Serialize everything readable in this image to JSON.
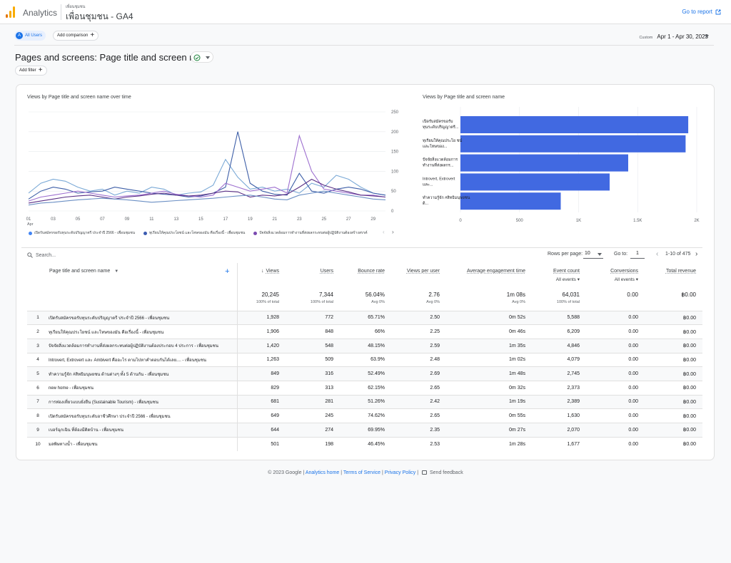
{
  "app": {
    "brand": "Analytics",
    "account_sub": "เพื่อนชุมชน",
    "account_main": "เพื่อนชุมชน - GA4",
    "go_to_report": "Go to report"
  },
  "toolbar": {
    "segment_avatar": "A",
    "segment_label": "All Users",
    "add_comparison": "Add comparison",
    "date_label": "Custom",
    "date_range": "Apr 1 - Apr 30, 2023"
  },
  "report": {
    "title": "Pages and screens: Page title and screen name",
    "add_filter": "Add filter"
  },
  "line_chart": {
    "title": "Views by Page title and screen name over time",
    "y_ticks": [
      "250",
      "200",
      "150",
      "100",
      "50",
      "0"
    ],
    "x_ticks": [
      "01",
      "03",
      "05",
      "07",
      "09",
      "11",
      "13",
      "15",
      "17",
      "19",
      "21",
      "23",
      "25",
      "27",
      "29"
    ],
    "x_month": "Apr",
    "legend": [
      {
        "name": "เปิดรับสมัครขอรับทุนระดับปริญญาตรี ประจำปี 2566 - เพื่อนชุมชน",
        "color": "#4285f4"
      },
      {
        "name": "ทุเรียนให้คุณประโยชน์ และโทษของมัน คือเรื่องนี้ - เพื่อนชุมชน",
        "color": "#3b5bb0"
      },
      {
        "name": "ปัจจัยสิ่งแวดล้อมการทำงานที่ส่งผลกระทบต่อผู้ปฏิบัติงานต้องสร้างสรรค์",
        "color": "#7a4ab0"
      }
    ],
    "colors": {
      "s1": "#7aa9d6",
      "s2": "#3e5fa8",
      "s3": "#9d6fcf",
      "s4": "#5a2f85",
      "s5": "#6b8fc4"
    },
    "series": [
      {
        "values": [
          45,
          70,
          80,
          75,
          60,
          50,
          55,
          40,
          50,
          45,
          60,
          55,
          40,
          45,
          48,
          65,
          130,
          85,
          55,
          60,
          50,
          55,
          45,
          70,
          60,
          90,
          80,
          60,
          45,
          40
        ]
      },
      {
        "values": [
          30,
          50,
          60,
          55,
          45,
          48,
          50,
          60,
          55,
          50,
          45,
          42,
          40,
          35,
          38,
          45,
          60,
          200,
          70,
          50,
          42,
          40,
          95,
          50,
          45,
          55,
          60,
          55,
          45,
          40
        ]
      },
      {
        "values": [
          25,
          35,
          40,
          45,
          50,
          45,
          40,
          35,
          38,
          40,
          45,
          50,
          42,
          38,
          35,
          40,
          70,
          60,
          50,
          55,
          60,
          45,
          190,
          100,
          55,
          50,
          45,
          40,
          40,
          35
        ]
      },
      {
        "values": [
          20,
          25,
          30,
          35,
          38,
          40,
          35,
          30,
          35,
          38,
          42,
          45,
          40,
          38,
          40,
          45,
          50,
          48,
          35,
          40,
          38,
          42,
          60,
          80,
          65,
          55,
          48,
          40,
          38,
          35
        ]
      },
      {
        "values": [
          15,
          20,
          22,
          25,
          28,
          30,
          32,
          30,
          28,
          25,
          22,
          24,
          26,
          28,
          30,
          32,
          35,
          38,
          40,
          35,
          30,
          28,
          40,
          45,
          50,
          45,
          40,
          35,
          30,
          28
        ]
      }
    ]
  },
  "bar_chart": {
    "title": "Views by Page title and screen name",
    "color": "#4169e1",
    "categories": [
      "เปิดรับสมัครขอรับ ทุนระดับปริญญาตรี...",
      "ทุเรียนให้คุณประโย ชน์ และโทษของ...",
      "ปัจจัยสิ่งแวดล้อมการ ทำงานที่ส่งผลกร...",
      "Introvert, Extrovert และ...",
      "ทำความรู้จัก #สิทธิมนุษยชน ดิ..."
    ],
    "values": [
      1928,
      1906,
      1420,
      1263,
      849
    ],
    "x_ticks": [
      "0",
      "500",
      "1K",
      "1.5K",
      "2K"
    ],
    "xlim": [
      0,
      2000
    ]
  },
  "table_controls": {
    "search_placeholder": "Search...",
    "rows_per_page_label": "Rows per page:",
    "rows_per_page": "10",
    "go_to_label": "Go to:",
    "go_to": "1",
    "range": "1-10 of 475"
  },
  "table": {
    "dim_header": "Page title and screen name",
    "headers": [
      "Views",
      "Users",
      "Bounce rate",
      "Views per user",
      "Average engagement time",
      "Event count",
      "Conversions",
      "Total revenue"
    ],
    "subheaders": [
      "",
      "",
      "",
      "",
      "",
      "All events",
      "All events",
      ""
    ],
    "totals": [
      "20,245",
      "7,344",
      "56.04%",
      "2.76",
      "1m 08s",
      "64,031",
      "0.00",
      "฿0.00"
    ],
    "totals_sub": [
      "100% of total",
      "100% of total",
      "Avg 0%",
      "Avg 0%",
      "Avg 0%",
      "100% of total",
      "",
      ""
    ],
    "rows": [
      {
        "idx": "1",
        "name": "เปิดรับสมัครขอรับทุนระดับปริญญาตรี ประจำปี 2566 - เพื่อนชุมชน",
        "cells": [
          "1,928",
          "772",
          "65.71%",
          "2.50",
          "0m 52s",
          "5,588",
          "0.00",
          "฿0.00"
        ]
      },
      {
        "idx": "2",
        "name": "ทุเรียนให้คุณประโยชน์ และโทษของมัน คือเรื่องนี้ - เพื่อนชุมชน",
        "cells": [
          "1,906",
          "848",
          "66%",
          "2.25",
          "0m 46s",
          "6,209",
          "0.00",
          "฿0.00"
        ]
      },
      {
        "idx": "3",
        "name": "ปัจจัยสิ่งแวดล้อมการทำงานที่ส่งผลกระทบต่อผู้ปฏิบัติงานต้องประกอบ 4 ประการ - เพื่อนชุมชน",
        "cells": [
          "1,420",
          "548",
          "48.15%",
          "2.59",
          "1m 35s",
          "4,846",
          "0.00",
          "฿0.00"
        ]
      },
      {
        "idx": "4",
        "name": "Introvert, Extrovert และ Ambivert คืออะไร ตามไปหาคำตอบกันได้เลย.... - เพื่อนชุมชน",
        "cells": [
          "1,263",
          "509",
          "63.9%",
          "2.48",
          "1m 02s",
          "4,079",
          "0.00",
          "฿0.00"
        ]
      },
      {
        "idx": "5",
        "name": "ทำความรู้จัก #สิทธิมนุษยชน ด้านต่างๆ ทั้ง 5 ด้านกัน - เพื่อนชุมชน",
        "cells": [
          "849",
          "316",
          "52.49%",
          "2.69",
          "1m 48s",
          "2,745",
          "0.00",
          "฿0.00"
        ]
      },
      {
        "idx": "6",
        "name": "new home - เพื่อนชุมชน",
        "cells": [
          "829",
          "313",
          "62.15%",
          "2.65",
          "0m 32s",
          "2,373",
          "0.00",
          "฿0.00"
        ]
      },
      {
        "idx": "7",
        "name": "การท่องเที่ยวแบบยั่งยืน (Sustainable Tourism) - เพื่อนชุมชน",
        "cells": [
          "681",
          "281",
          "51.26%",
          "2.42",
          "1m 19s",
          "2,389",
          "0.00",
          "฿0.00"
        ]
      },
      {
        "idx": "8",
        "name": "เปิดรับสมัครขอรับทุนระดับอาชีวศึกษา ประจำปี 2566 - เพื่อนชุมชน",
        "cells": [
          "649",
          "245",
          "74.62%",
          "2.65",
          "0m 55s",
          "1,630",
          "0.00",
          "฿0.00"
        ]
      },
      {
        "idx": "9",
        "name": "เบอร์ฉุกเฉิน ที่ต้องมีติดบ้าน - เพื่อนชุมชน",
        "cells": [
          "644",
          "274",
          "69.95%",
          "2.35",
          "0m 27s",
          "2,070",
          "0.00",
          "฿0.00"
        ]
      },
      {
        "idx": "10",
        "name": "มลพิษทางน้ำ - เพื่อนชุมชน",
        "cells": [
          "501",
          "198",
          "46.45%",
          "2.53",
          "1m 28s",
          "1,677",
          "0.00",
          "฿0.00"
        ]
      }
    ]
  },
  "footer": {
    "copyright": "© 2023 Google",
    "analytics_home": "Analytics home",
    "terms": "Terms of Service",
    "privacy": "Privacy Policy",
    "feedback": "Send feedback"
  },
  "colors": {
    "accent": "#1a73e8",
    "logo_a": "#f9ab00",
    "logo_b": "#e37400"
  }
}
